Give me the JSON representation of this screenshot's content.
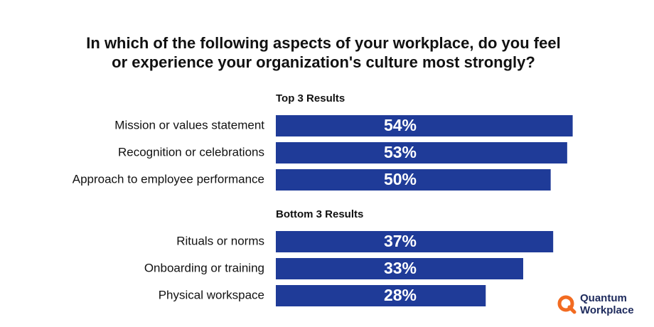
{
  "title": [
    "In which of the following aspects of your workplace, do you feel",
    "or experience your organization's culture most strongly?"
  ],
  "chart_data": [
    {
      "type": "bar",
      "subtitle": "Top 3 Results",
      "categories": [
        "Mission or values statement",
        "Recognition or celebrations",
        "Approach to employee performance"
      ],
      "values": [
        54,
        53,
        50
      ],
      "value_labels": [
        "54%",
        "53%",
        "50%"
      ],
      "xlim": [
        0,
        60
      ],
      "color": "#1f3b98"
    },
    {
      "type": "bar",
      "subtitle": "Bottom 3 Results",
      "categories": [
        "Rituals or norms",
        "Onboarding or training",
        "Physical workspace"
      ],
      "values": [
        37,
        33,
        28
      ],
      "value_labels": [
        "37%",
        "33%",
        "28%"
      ],
      "xlim": [
        0,
        44
      ],
      "color": "#1f3b98"
    }
  ],
  "logo": [
    "Quantum",
    "Workplace"
  ]
}
